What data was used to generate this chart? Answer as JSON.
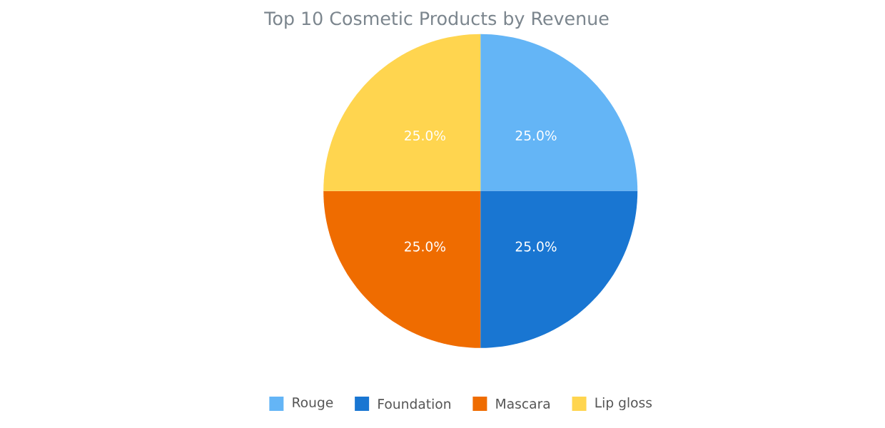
{
  "chart_data": {
    "type": "pie",
    "title": "Top 10 Cosmetic Products by Revenue",
    "categories": [
      "Rouge",
      "Foundation",
      "Mascara",
      "Lip gloss"
    ],
    "values": [
      25,
      25,
      25,
      25
    ],
    "colors": [
      "#64b5f6",
      "#1976d2",
      "#ef6c00",
      "#ffd54f"
    ],
    "value_labels": [
      "25.0%",
      "25.0%",
      "25.0%",
      "25.0%"
    ],
    "legend": "bottom"
  }
}
